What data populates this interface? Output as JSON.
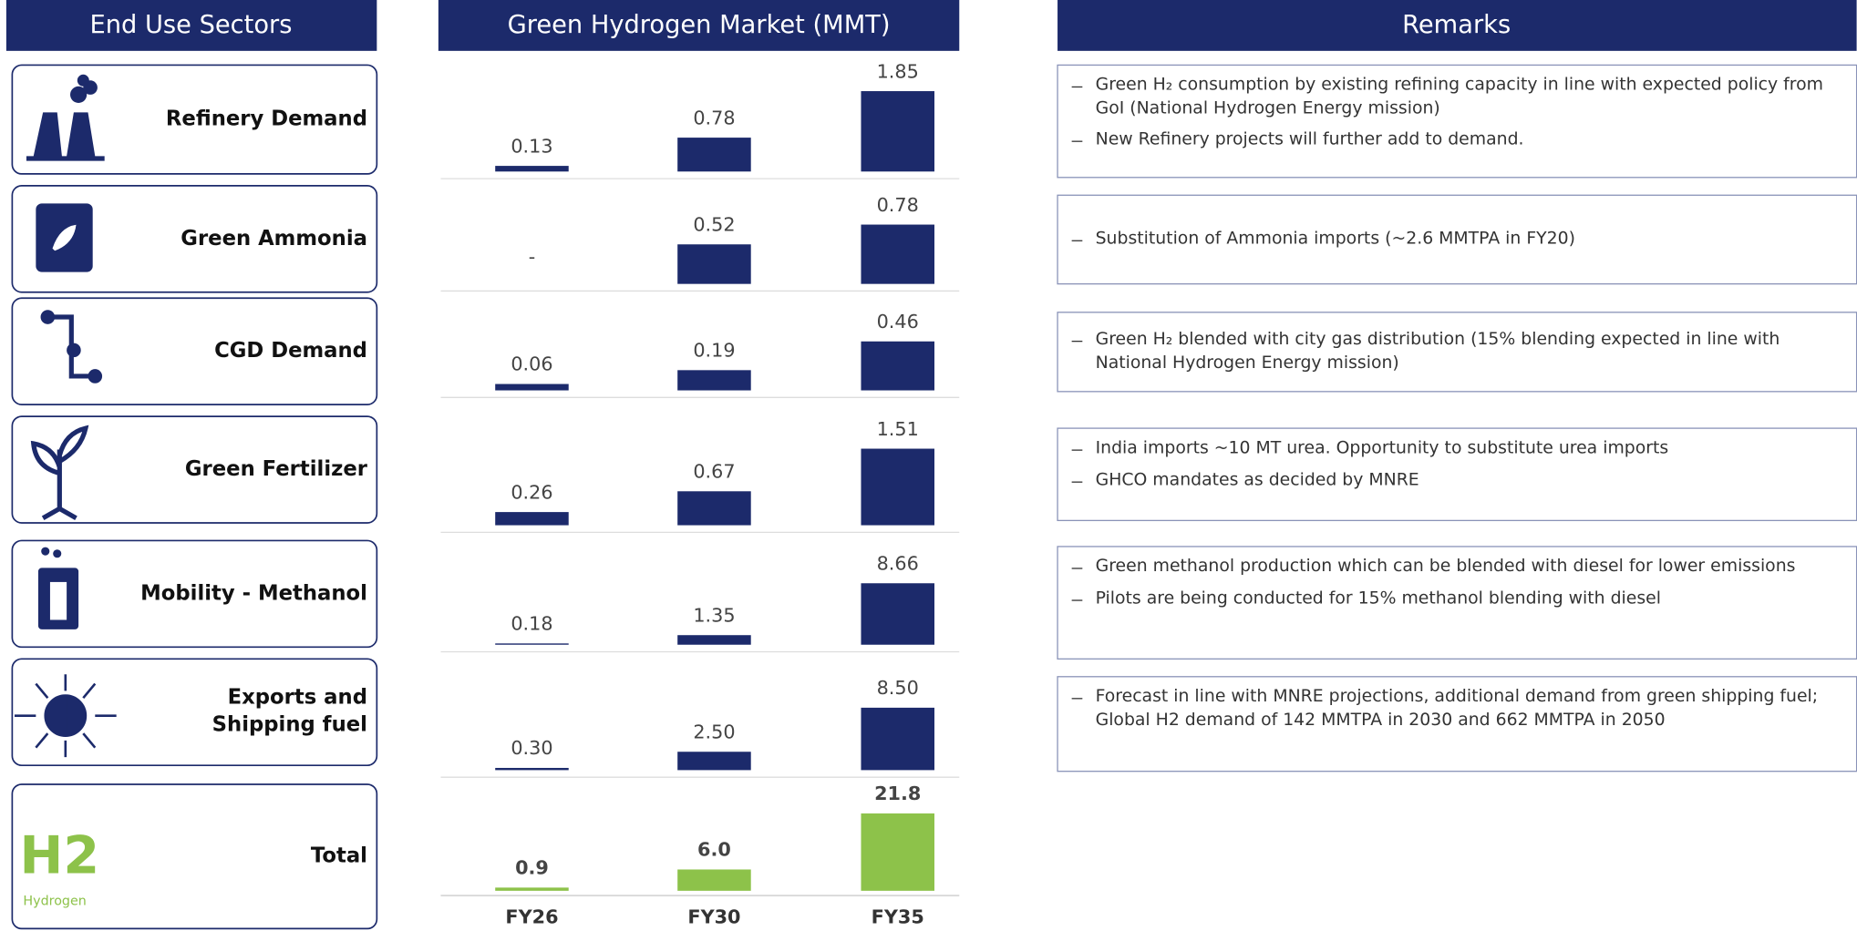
{
  "headers": {
    "sectors": "End Use Sectors",
    "remarks": "Remarks"
  },
  "total_icon": {
    "symbol": "H2",
    "caption": "Hydrogen"
  },
  "chart_data": {
    "type": "bar",
    "title": "Green Hydrogen Market (MMT)",
    "categories": [
      "FY26",
      "FY30",
      "FY35"
    ],
    "series": [
      {
        "name": "Refinery Demand",
        "color": "#1c2a6b",
        "values": [
          0.13,
          0.78,
          1.85
        ],
        "ylim": [
          0,
          2.45
        ]
      },
      {
        "name": "Green Ammonia",
        "color": "#1c2a6b",
        "values": [
          null,
          0.52,
          0.78
        ],
        "value_labels": [
          "-",
          "0.52",
          "0.78"
        ],
        "ylim": [
          0,
          1.4
        ]
      },
      {
        "name": "CGD Demand",
        "color": "#1c2a6b",
        "values": [
          0.06,
          0.19,
          0.46
        ],
        "ylim": [
          0,
          1.0
        ]
      },
      {
        "name": "Green Fertilizer",
        "color": "#1c2a6b",
        "values": [
          0.26,
          0.67,
          1.51
        ],
        "ylim": [
          0,
          2.1
        ]
      },
      {
        "name": "Mobility - Methanol",
        "color": "#1c2a6b",
        "values": [
          0.18,
          1.35,
          8.66
        ],
        "ylim": [
          0,
          15
        ]
      },
      {
        "name": "Exports and Shipping fuel",
        "color": "#1c2a6b",
        "values": [
          0.3,
          2.5,
          8.5
        ],
        "value_labels": [
          "0.30",
          "2.50",
          "8.50"
        ],
        "ylim": [
          0,
          14.5
        ]
      },
      {
        "name": "Total",
        "color": "#8dc24a",
        "values": [
          0.9,
          6.0,
          21.8
        ],
        "value_labels": [
          "0.9",
          "6.0",
          "21.8"
        ],
        "ylim": [
          0,
          30
        ]
      }
    ]
  },
  "remarks": [
    [
      "Green H₂ consumption by existing refining capacity in line with expected policy from GoI (National Hydrogen Energy mission)",
      "New Refinery projects will further add to demand."
    ],
    [
      "Substitution of Ammonia imports (~2.6 MMTPA in FY20)"
    ],
    [
      "Green H₂ blended with city gas distribution (15% blending expected in line with National Hydrogen Energy mission)"
    ],
    [
      "India imports ~10 MT urea. Opportunity to substitute urea imports",
      "GHCO mandates as decided by MNRE"
    ],
    [
      "Green methanol production which can be blended with diesel for lower emissions",
      "Pilots are being conducted for 15% methanol blending with diesel"
    ],
    [
      "Forecast in line with MNRE projections, additional demand from green shipping fuel; Global H2 demand of 142 MMTPA in 2030 and 662 MMTPA in 2050"
    ]
  ]
}
